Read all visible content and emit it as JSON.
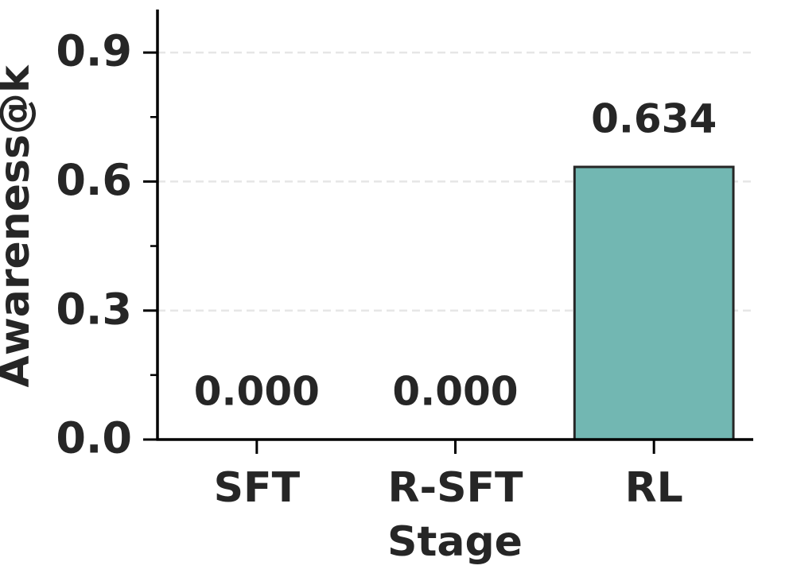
{
  "chart_data": {
    "type": "bar",
    "xlabel": "Stage",
    "ylabel": "Awareness@k",
    "categories": [
      "SFT",
      "R-SFT",
      "RL"
    ],
    "values": [
      0,
      0,
      0.634
    ],
    "value_labels": [
      "0.000",
      "0.000",
      "0.634"
    ],
    "color": "#72b7b2",
    "edgecolor": "#262626",
    "ylim": [
      0,
      1.0
    ],
    "yticks": [
      {
        "value": 0,
        "label": "0.0"
      },
      0.3,
      0.6,
      0.9
    ],
    "yminorticks": [
      0.15,
      0.45,
      0.75
    ],
    "grid": true
  }
}
